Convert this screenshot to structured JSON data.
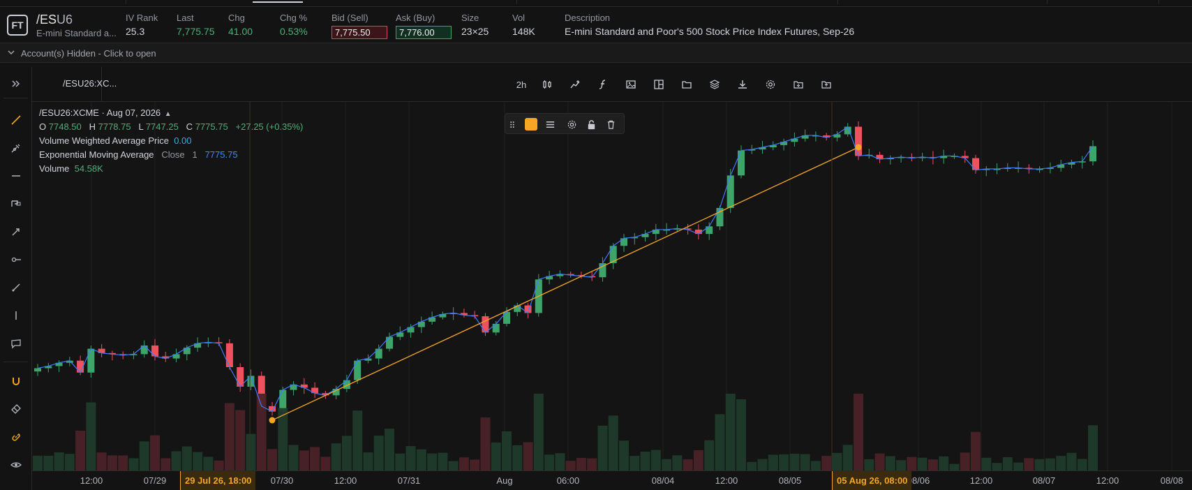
{
  "quote": {
    "logo": "FT",
    "symbol_prefix": "/ES",
    "symbol_suffix": "U6",
    "symbol_desc": "E-mini Standard a...",
    "fields": [
      {
        "label": "IV Rank",
        "value": "25.3",
        "style": "plain"
      },
      {
        "label": "Last",
        "value": "7,775.75",
        "style": "green"
      },
      {
        "label": "Chg",
        "value": "41.00",
        "style": "green"
      },
      {
        "label": "Chg %",
        "value": "0.53%",
        "style": "green"
      },
      {
        "label": "Bid (Sell)",
        "value": "7,775.50",
        "style": "bid"
      },
      {
        "label": "Ask (Buy)",
        "value": "7,776.00",
        "style": "ask"
      },
      {
        "label": "Size",
        "value": "23×25",
        "style": "plain"
      },
      {
        "label": "Vol",
        "value": "148K",
        "style": "plain"
      },
      {
        "label": "Description",
        "value": "E-mini Standard and Poor's 500 Stock Price Index Futures, Sep-26",
        "style": "plain"
      }
    ]
  },
  "account": {
    "text": "Account(s) Hidden - Click to open"
  },
  "chart_tab": {
    "label": "/ESU26:XC..."
  },
  "toolbar": {
    "interval": "2h"
  },
  "legend": {
    "title": "/ESU26:XCME · Aug 07, 2026",
    "ohlc": {
      "o_label": "O",
      "o": "7748.50",
      "h_label": "H",
      "h": "7778.75",
      "l_label": "L",
      "l": "7747.25",
      "c_label": "C",
      "c": "7775.75",
      "change": "+27.25 (+0.35%)"
    },
    "vwap": {
      "label": "Volume Weighted Average Price",
      "value": "0.00"
    },
    "ema": {
      "label": "Exponential Moving Average",
      "source": "Close",
      "length": "1",
      "value": "7775.75"
    },
    "volume": {
      "label": "Volume",
      "value": "54.58K"
    }
  },
  "xaxis": {
    "ticks": [
      "12:00",
      "07/29",
      "07/30",
      "12:00",
      "07/31",
      "Aug",
      "06:00",
      "08/04",
      "12:00",
      "08/05",
      "08/06",
      "12:00",
      "08/07",
      "12:00",
      "08/08"
    ],
    "highlight_start": "29 Jul 26, 18:00",
    "highlight_end": "05 Aug 26, 08:00"
  },
  "colors": {
    "up": "#3fa46a",
    "down": "#f0515e",
    "trendline": "#f5a623",
    "ema": "#3d7bff",
    "bg": "#141414"
  },
  "chart_data": {
    "type": "candlestick",
    "note_series": [
      {
        "name": "Volume"
      },
      {
        "name": "Exponential Moving Average"
      }
    ],
    "candles_close": [
      7607,
      7609,
      7612,
      7614,
      7603,
      7625,
      7621,
      7620,
      7619,
      7620,
      7628,
      7618,
      7616,
      7620,
      7626,
      7630,
      7631,
      7630,
      7608,
      7590,
      7600,
      7572,
      7567,
      7587,
      7592,
      7589,
      7584,
      7582,
      7588,
      7596,
      7614,
      7616,
      7625,
      7636,
      7640,
      7645,
      7650,
      7654,
      7657,
      7658,
      7656,
      7655,
      7640,
      7648,
      7659,
      7665,
      7658,
      7689,
      7692,
      7694,
      7693,
      7692,
      7691,
      7704,
      7720,
      7727,
      7728,
      7731,
      7735,
      7735,
      7736,
      7735,
      7731,
      7738,
      7755,
      7785,
      7808,
      7809,
      7811,
      7813,
      7816,
      7819,
      7822,
      7822,
      7820,
      7823,
      7830,
      7803,
      7804,
      7800,
      7801,
      7802,
      7801,
      7802,
      7801,
      7803,
      7803,
      7801,
      7790,
      7791,
      7791,
      7792,
      7792,
      7791,
      7791,
      7792,
      7795,
      7797,
      7798,
      7812
    ]
  }
}
